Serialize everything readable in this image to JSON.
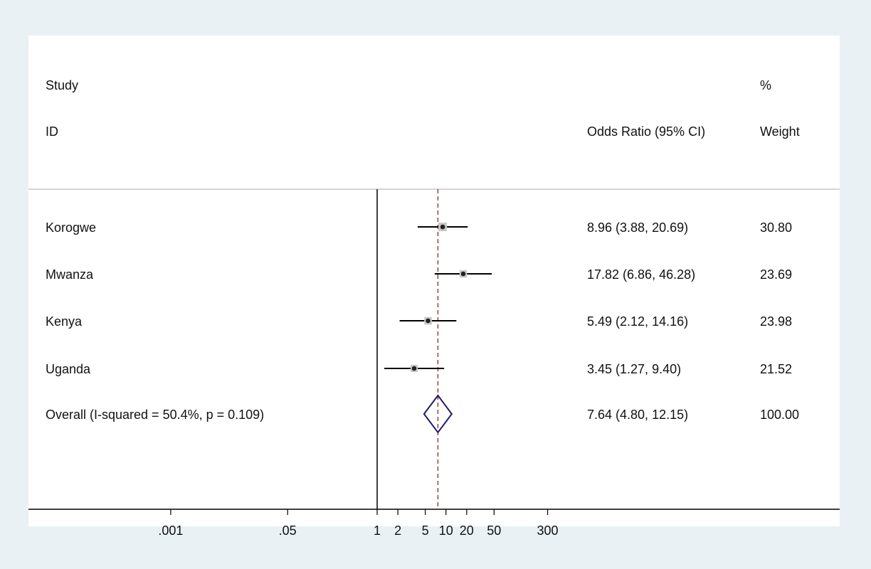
{
  "colors": {
    "background": "#e9f1f5",
    "panel": "#ffffff",
    "ci_line": "#000000",
    "box": "#c8c8c8",
    "point": "#222222",
    "diamond": "#1c1c6e",
    "pooled_line": "#8b2a2a"
  },
  "header": {
    "study_line1": "Study",
    "study_line2": "ID",
    "effect": "Odds Ratio (95% CI)",
    "weight_line1": "%",
    "weight_line2": "Weight"
  },
  "chart_data": {
    "type": "forest",
    "scale": "log",
    "null_value": 1,
    "xlim": [
      0.0002,
      1500
    ],
    "x_ticks": [
      {
        "value": 0.001,
        "label": ".001"
      },
      {
        "value": 0.05,
        "label": ".05"
      },
      {
        "value": 1,
        "label": "1"
      },
      {
        "value": 2,
        "label": "2"
      },
      {
        "value": 5,
        "label": "5"
      },
      {
        "value": 10,
        "label": "10"
      },
      {
        "value": 20,
        "label": "20"
      },
      {
        "value": 50,
        "label": "50"
      },
      {
        "value": 300,
        "label": "300"
      }
    ],
    "studies": [
      {
        "id": "Korogwe",
        "or": 8.96,
        "lower": 3.88,
        "upper": 20.69,
        "ci_text": "8.96 (3.88, 20.69)",
        "weight": 30.8,
        "weight_text": "30.80"
      },
      {
        "id": "Mwanza",
        "or": 17.82,
        "lower": 6.86,
        "upper": 46.28,
        "ci_text": "17.82 (6.86, 46.28)",
        "weight": 23.69,
        "weight_text": "23.69"
      },
      {
        "id": "Kenya",
        "or": 5.49,
        "lower": 2.12,
        "upper": 14.16,
        "ci_text": "5.49 (2.12, 14.16)",
        "weight": 23.98,
        "weight_text": "23.98"
      },
      {
        "id": "Uganda",
        "or": 3.45,
        "lower": 1.27,
        "upper": 9.4,
        "ci_text": "3.45 (1.27, 9.40)",
        "weight": 21.52,
        "weight_text": "21.52"
      }
    ],
    "overall": {
      "label": "Overall  (I-squared = 50.4%, p = 0.109)",
      "or": 7.64,
      "lower": 4.8,
      "upper": 12.15,
      "ci_text": "7.64 (4.80, 12.15)",
      "weight_text": "100.00"
    }
  }
}
